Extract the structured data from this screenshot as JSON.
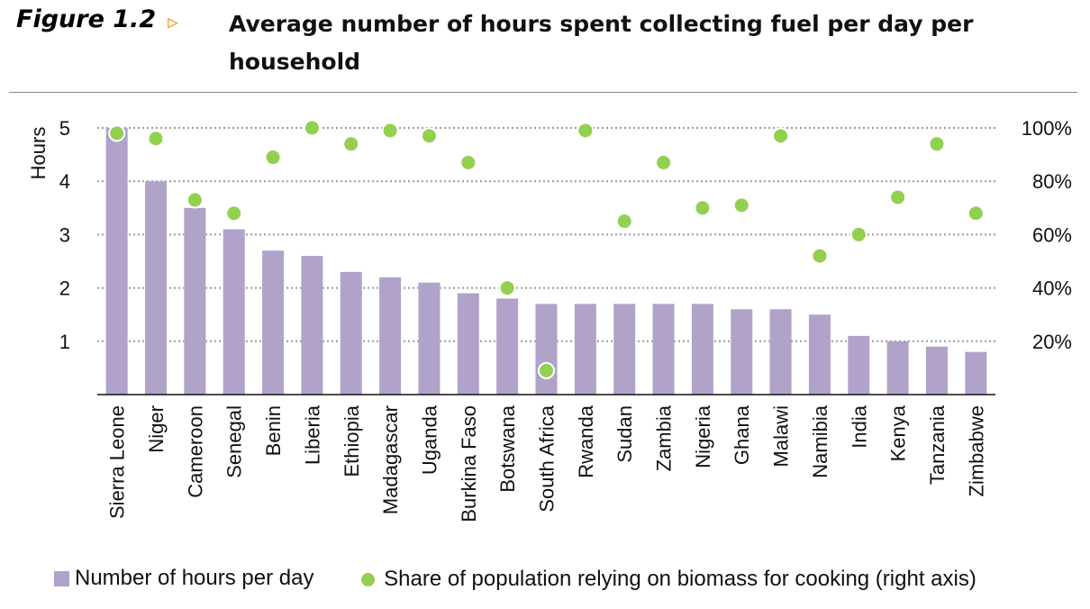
{
  "figure": {
    "label": "Figure 1.2",
    "arrow": "▹",
    "title_line1": "Average number of hours spent collecting fuel per day per",
    "title_line2": "household"
  },
  "colors": {
    "bar": "#b0a2c8",
    "dot": "#92d050",
    "grid": "#9a9a9a",
    "axis": "#111111",
    "arrow": "#f39c2b"
  },
  "chart_data": {
    "type": "bar",
    "categories": [
      "Sierra Leone",
      "Niger",
      "Cameroon",
      "Senegal",
      "Benin",
      "Liberia",
      "Ethiopia",
      "Madagascar",
      "Uganda",
      "Burkina Faso",
      "Botswana",
      "South Africa",
      "Rwanda",
      "Sudan",
      "Zambia",
      "Nigeria",
      "Ghana",
      "Malawi",
      "Namibia",
      "India",
      "Kenya",
      "Tanzania",
      "Zimbabwe"
    ],
    "series": [
      {
        "name": "Number of hours per day",
        "type": "bar",
        "axis": "left",
        "values": [
          5.0,
          4.0,
          3.5,
          3.1,
          2.7,
          2.6,
          2.3,
          2.2,
          2.1,
          1.9,
          1.8,
          1.7,
          1.7,
          1.7,
          1.7,
          1.7,
          1.6,
          1.6,
          1.5,
          1.1,
          1.0,
          0.9,
          0.8
        ]
      },
      {
        "name": "Share of population relying on biomass for cooking (right axis)",
        "type": "scatter",
        "axis": "right",
        "values": [
          0.98,
          0.96,
          0.73,
          0.68,
          0.89,
          1.0,
          0.94,
          0.99,
          0.97,
          0.87,
          0.4,
          0.09,
          0.99,
          0.65,
          0.87,
          0.7,
          0.71,
          0.97,
          0.52,
          0.6,
          0.74,
          0.94,
          0.68
        ]
      }
    ],
    "ylabel": "Hours",
    "ylim": [
      0,
      5
    ],
    "yticks": [
      1,
      2,
      3,
      4,
      5
    ],
    "y2lim": [
      0,
      1
    ],
    "y2ticks": [
      0.2,
      0.4,
      0.6,
      0.8,
      1.0
    ],
    "y2ticklabels": [
      "20%",
      "40%",
      "60%",
      "80%",
      "100%"
    ],
    "grid": "dotted horizontal",
    "legend_position": "bottom"
  }
}
